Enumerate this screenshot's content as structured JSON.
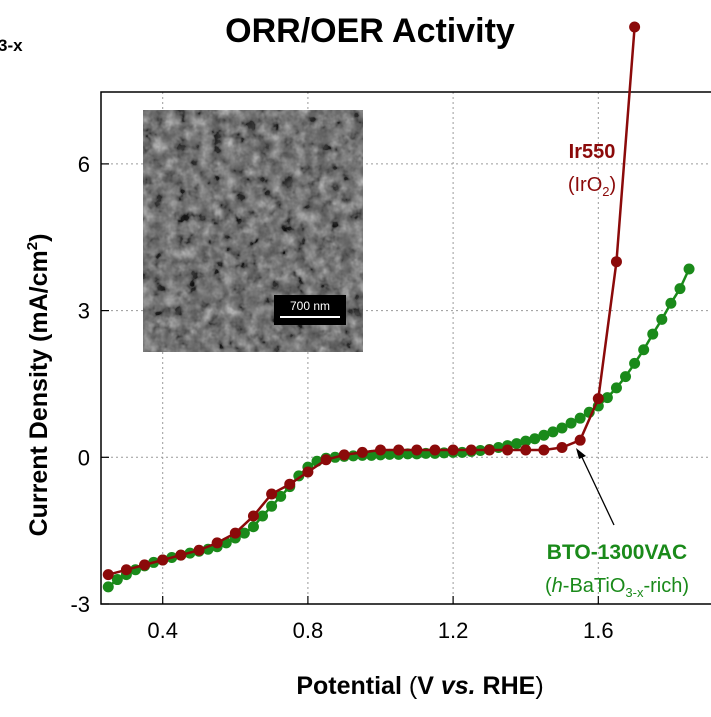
{
  "fragment_left": "3-x",
  "chart_data": {
    "type": "line",
    "title": "ORR/OER Activity",
    "xlabel": {
      "main": "Potential",
      "open": "(",
      "v": "V ",
      "vs": "vs.",
      "rhe": " RHE",
      "close": ")"
    },
    "ylabel": {
      "main": "Current Density",
      "unit_open": "(mA/cm",
      "unit_sup": "2",
      "unit_close": ")"
    },
    "xlim": [
      0.23,
      1.87
    ],
    "ylim": [
      -3,
      8.3
    ],
    "xticks": [
      "0.4",
      "0.8",
      "1.2",
      "1.6"
    ],
    "xtick_values": [
      0.4,
      0.8,
      1.2,
      1.6
    ],
    "yticks": [
      "-3",
      "0",
      "3",
      "6"
    ],
    "ytick_values": [
      -3,
      0,
      3,
      6
    ],
    "grid": true,
    "series": [
      {
        "name": "Ir550",
        "color": "#8b0a0a",
        "x": [
          0.25,
          0.3,
          0.35,
          0.4,
          0.45,
          0.5,
          0.55,
          0.6,
          0.65,
          0.7,
          0.75,
          0.8,
          0.85,
          0.9,
          0.95,
          1.0,
          1.05,
          1.1,
          1.15,
          1.2,
          1.25,
          1.3,
          1.35,
          1.4,
          1.45,
          1.5,
          1.55,
          1.6,
          1.65,
          1.7
        ],
        "y": [
          -2.4,
          -2.3,
          -2.2,
          -2.1,
          -2.0,
          -1.9,
          -1.75,
          -1.55,
          -1.2,
          -0.75,
          -0.55,
          -0.3,
          -0.05,
          0.05,
          0.1,
          0.15,
          0.15,
          0.15,
          0.15,
          0.15,
          0.15,
          0.15,
          0.15,
          0.15,
          0.15,
          0.2,
          0.35,
          1.2,
          4.0,
          8.8
        ]
      },
      {
        "name": "BTO-1300VAC",
        "color": "#1a8a1a",
        "x": [
          0.25,
          0.275,
          0.3,
          0.325,
          0.35,
          0.375,
          0.4,
          0.425,
          0.45,
          0.475,
          0.5,
          0.525,
          0.55,
          0.575,
          0.6,
          0.625,
          0.65,
          0.675,
          0.7,
          0.725,
          0.75,
          0.775,
          0.8,
          0.825,
          0.85,
          0.875,
          0.9,
          0.925,
          0.95,
          0.975,
          1.0,
          1.025,
          1.05,
          1.075,
          1.1,
          1.125,
          1.15,
          1.175,
          1.2,
          1.225,
          1.25,
          1.275,
          1.3,
          1.325,
          1.35,
          1.375,
          1.4,
          1.425,
          1.45,
          1.475,
          1.5,
          1.525,
          1.55,
          1.575,
          1.6,
          1.625,
          1.65,
          1.675,
          1.7,
          1.725,
          1.75,
          1.775,
          1.8,
          1.825,
          1.85
        ],
        "y": [
          -2.65,
          -2.5,
          -2.4,
          -2.3,
          -2.22,
          -2.15,
          -2.1,
          -2.05,
          -2.0,
          -1.96,
          -1.92,
          -1.88,
          -1.83,
          -1.75,
          -1.65,
          -1.55,
          -1.42,
          -1.2,
          -1.0,
          -0.8,
          -0.6,
          -0.38,
          -0.2,
          -0.08,
          -0.02,
          0.0,
          0.02,
          0.03,
          0.04,
          0.04,
          0.05,
          0.06,
          0.06,
          0.07,
          0.07,
          0.08,
          0.08,
          0.09,
          0.1,
          0.1,
          0.12,
          0.14,
          0.16,
          0.2,
          0.24,
          0.28,
          0.33,
          0.38,
          0.45,
          0.52,
          0.6,
          0.7,
          0.8,
          0.92,
          1.05,
          1.22,
          1.42,
          1.65,
          1.92,
          2.2,
          2.52,
          2.82,
          3.15,
          3.45,
          3.85
        ]
      }
    ],
    "annotations": {
      "ir_name": "Ir550",
      "ir_formula_open": "(IrO",
      "ir_formula_sub": "2",
      "ir_formula_close": ")",
      "bto_name": "BTO-1300VAC",
      "bto_paren_open": "(",
      "bto_h": "h",
      "bto_formula_a": "-BaTiO",
      "bto_formula_sub": "3-x",
      "bto_formula_b": "-rich)"
    },
    "inset": {
      "scale_label": "700 nm"
    }
  }
}
